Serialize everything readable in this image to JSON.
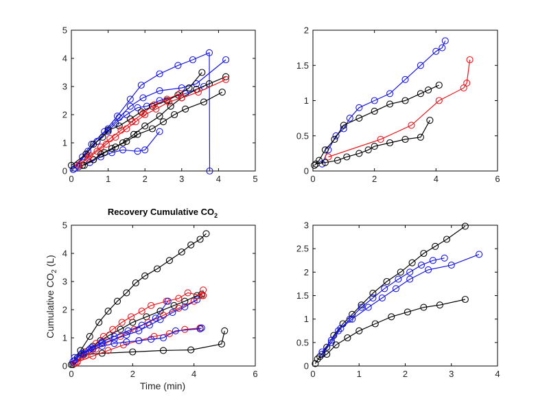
{
  "figure": {
    "title": "Recovery Cumulative CO",
    "title_sub": "2",
    "xlabel": "Time (min)",
    "ylabel_main": "Cumulative CO",
    "ylabel_sub": "2",
    "ylabel_unit": " (L)"
  },
  "colors": {
    "black": "#000000",
    "red": "#e8141a",
    "blue": "#1414e0"
  },
  "chart_data": [
    {
      "type": "line",
      "position": "top-left",
      "title": "",
      "xlabel": "",
      "ylabel": "",
      "xlim": [
        0,
        5
      ],
      "ylim": [
        0,
        5
      ],
      "xticks": [
        0,
        1,
        2,
        3,
        4,
        5
      ],
      "yticks": [
        0,
        1,
        2,
        3,
        4,
        5
      ],
      "grid": false,
      "series": [
        {
          "color": "blue",
          "x": [
            0.05,
            0.3,
            0.55,
            0.9,
            1.25,
            1.6,
            1.9,
            2.4,
            2.9,
            3.3,
            3.75,
            3.76
          ],
          "y": [
            0.05,
            0.5,
            0.95,
            1.4,
            1.95,
            2.55,
            3.05,
            3.45,
            3.75,
            3.95,
            4.2,
            0.0
          ]
        },
        {
          "color": "blue",
          "x": [
            0.1,
            0.4,
            0.7,
            1.0,
            1.3,
            1.6,
            1.95,
            2.4,
            3.0,
            3.4,
            4.2
          ],
          "y": [
            0.1,
            0.6,
            1.05,
            1.5,
            1.9,
            2.3,
            2.6,
            2.85,
            2.95,
            3.1,
            3.95
          ]
        },
        {
          "color": "blue",
          "x": [
            0.15,
            0.45,
            0.7,
            1.0,
            1.2,
            1.5,
            1.8,
            2.05,
            2.4,
            3.1,
            3.6
          ],
          "y": [
            0.2,
            0.7,
            1.05,
            1.4,
            1.7,
            2.0,
            2.25,
            2.3,
            2.5,
            2.75,
            3.0
          ]
        },
        {
          "color": "blue",
          "x": [
            0.2,
            0.5,
            0.8,
            1.1,
            1.4,
            1.8,
            2.0,
            2.4
          ],
          "y": [
            0.15,
            0.3,
            0.5,
            0.65,
            0.75,
            0.7,
            0.75,
            1.4
          ]
        },
        {
          "color": "black",
          "x": [
            0.0,
            0.4,
            0.6,
            0.85,
            1.0,
            1.3,
            1.6,
            1.9,
            2.2,
            2.6,
            2.9,
            3.2,
            3.55
          ],
          "y": [
            0.2,
            0.6,
            0.95,
            1.2,
            1.45,
            1.6,
            1.85,
            2.1,
            2.3,
            2.5,
            2.7,
            2.95,
            3.5
          ]
        },
        {
          "color": "black",
          "x": [
            0.3,
            0.6,
            0.8,
            1.1,
            1.4,
            1.7,
            2.0,
            2.4,
            2.7,
            3.0,
            3.4,
            3.75,
            4.2
          ],
          "y": [
            0.2,
            0.4,
            0.6,
            0.8,
            1.0,
            1.3,
            1.6,
            1.95,
            2.3,
            2.6,
            2.9,
            3.1,
            3.35
          ]
        },
        {
          "color": "black",
          "x": [
            0.35,
            0.6,
            0.9,
            1.2,
            1.5,
            1.8,
            2.2,
            2.5,
            2.8,
            3.1,
            3.6,
            4.1
          ],
          "y": [
            0.2,
            0.4,
            0.65,
            0.85,
            1.05,
            1.3,
            1.5,
            1.75,
            2.0,
            2.2,
            2.45,
            2.8
          ]
        },
        {
          "color": "red",
          "x": [
            0.2,
            0.45,
            0.7,
            0.95,
            1.2,
            1.5,
            1.75,
            2.0,
            2.3,
            2.65,
            3.0,
            3.45,
            4.2
          ],
          "y": [
            0.2,
            0.45,
            0.7,
            0.95,
            1.2,
            1.5,
            1.75,
            2.0,
            2.2,
            2.45,
            2.6,
            2.8,
            3.25
          ]
        },
        {
          "color": "red",
          "x": [
            0.25,
            0.5,
            0.8,
            1.05,
            1.35,
            1.65,
            1.95,
            2.25,
            2.6,
            2.95
          ],
          "y": [
            0.25,
            0.55,
            0.85,
            1.15,
            1.45,
            1.75,
            2.05,
            2.35,
            2.55,
            2.75
          ]
        }
      ]
    },
    {
      "type": "line",
      "position": "top-right",
      "title": "",
      "xlabel": "",
      "ylabel": "",
      "xlim": [
        0,
        6
      ],
      "ylim": [
        0,
        2
      ],
      "xticks": [
        0,
        2,
        4,
        6
      ],
      "yticks": [
        0,
        0.5,
        1,
        1.5,
        2
      ],
      "grid": false,
      "series": [
        {
          "color": "blue",
          "x": [
            0.3,
            0.5,
            0.75,
            1.0,
            1.2,
            1.5,
            2.0,
            2.5,
            3.0,
            3.5,
            4.0,
            4.2,
            4.3
          ],
          "y": [
            0.1,
            0.3,
            0.5,
            0.6,
            0.75,
            0.9,
            1.0,
            1.1,
            1.3,
            1.5,
            1.7,
            1.75,
            1.85
          ]
        },
        {
          "color": "black",
          "x": [
            0.05,
            0.2,
            0.4,
            0.7,
            1.0,
            1.5,
            2.0,
            2.5,
            3.0,
            3.5,
            3.75,
            4.1
          ],
          "y": [
            0.08,
            0.15,
            0.3,
            0.45,
            0.65,
            0.75,
            0.85,
            0.95,
            1.0,
            1.1,
            1.15,
            1.22
          ]
        },
        {
          "color": "red",
          "x": [
            0.5,
            2.2,
            3.2,
            4.1,
            4.9,
            5.0,
            5.1
          ],
          "y": [
            0.2,
            0.45,
            0.65,
            1.0,
            1.18,
            1.25,
            1.58
          ]
        },
        {
          "color": "black",
          "x": [
            0.1,
            0.4,
            0.8,
            1.1,
            1.5,
            1.8,
            2.0,
            2.5,
            3.0,
            3.5,
            3.8
          ],
          "y": [
            0.1,
            0.12,
            0.15,
            0.2,
            0.25,
            0.3,
            0.35,
            0.4,
            0.45,
            0.48,
            0.72
          ]
        }
      ]
    },
    {
      "type": "line",
      "position": "bottom-left",
      "title": "Recovery Cumulative CO2",
      "xlabel": "Time (min)",
      "ylabel": "Cumulative CO2 (L)",
      "xlim": [
        0,
        6
      ],
      "ylim": [
        0,
        5
      ],
      "xticks": [
        0,
        2,
        4,
        6
      ],
      "yticks": [
        0,
        1,
        2,
        3,
        4,
        5
      ],
      "grid": false,
      "series": [
        {
          "color": "black",
          "x": [
            0.0,
            0.3,
            0.6,
            0.9,
            1.2,
            1.5,
            1.8,
            2.1,
            2.4,
            2.8,
            3.2,
            3.6,
            3.9,
            4.2,
            4.4
          ],
          "y": [
            0.05,
            0.55,
            1.05,
            1.55,
            1.95,
            2.3,
            2.6,
            2.95,
            3.2,
            3.45,
            3.75,
            4.05,
            4.3,
            4.5,
            4.7
          ]
        },
        {
          "color": "black",
          "x": [
            0.2,
            0.45,
            0.7,
            0.95,
            1.25,
            1.6,
            2.0,
            2.45,
            2.9,
            3.35,
            3.7,
            4.1,
            4.25
          ],
          "y": [
            0.3,
            0.5,
            0.7,
            0.9,
            1.1,
            1.3,
            1.55,
            1.75,
            1.95,
            2.15,
            2.3,
            2.5,
            2.55
          ]
        },
        {
          "color": "black",
          "x": [
            0.05,
            0.4,
            1.0,
            2.0,
            3.0,
            3.9,
            4.9,
            5.0
          ],
          "y": [
            0.05,
            0.4,
            0.45,
            0.5,
            0.55,
            0.57,
            0.78,
            1.25
          ]
        },
        {
          "color": "red",
          "x": [
            0.1,
            0.3,
            0.55,
            0.8,
            1.05,
            1.35,
            1.65,
            1.95,
            2.3,
            2.6,
            3.1,
            3.5,
            3.8,
            4.25,
            4.3
          ],
          "y": [
            0.1,
            0.3,
            0.55,
            0.8,
            1.05,
            1.3,
            1.55,
            1.75,
            1.95,
            2.15,
            2.3,
            2.4,
            2.6,
            2.5,
            2.7
          ]
        },
        {
          "color": "red",
          "x": [
            0.15,
            0.45,
            0.8,
            1.2,
            1.6,
            2.05,
            2.5,
            3.0,
            3.5,
            4.0,
            4.3
          ],
          "y": [
            0.1,
            0.35,
            0.6,
            0.85,
            1.05,
            1.3,
            1.55,
            1.8,
            2.05,
            2.3,
            2.5
          ]
        },
        {
          "color": "red",
          "x": [
            0.2,
            0.7,
            1.2,
            1.7,
            2.2,
            2.7,
            3.2,
            3.7,
            4.2
          ],
          "y": [
            0.15,
            0.35,
            0.55,
            0.75,
            0.9,
            1.05,
            1.15,
            1.3,
            1.35
          ]
        },
        {
          "color": "blue",
          "x": [
            0.05,
            0.3,
            0.6,
            1.0,
            1.4,
            1.8,
            2.2,
            2.55,
            2.9,
            3.3,
            3.7,
            4.1
          ],
          "y": [
            0.15,
            0.4,
            0.6,
            0.8,
            0.95,
            1.1,
            1.25,
            1.45,
            1.65,
            1.9,
            2.1,
            2.35
          ]
        },
        {
          "color": "blue",
          "x": [
            0.1,
            0.35,
            0.65,
            1.0,
            1.4,
            1.85,
            2.3,
            2.75,
            3.15
          ],
          "y": [
            0.2,
            0.45,
            0.65,
            0.85,
            1.05,
            1.25,
            1.45,
            1.7,
            2.3
          ]
        },
        {
          "color": "blue",
          "x": [
            0.1,
            0.4,
            0.7,
            1.0,
            1.4,
            1.8,
            2.2,
            2.6,
            3.0,
            3.4,
            4.2,
            4.25
          ],
          "y": [
            0.3,
            0.45,
            0.6,
            0.7,
            0.8,
            0.85,
            0.9,
            0.95,
            1.0,
            1.25,
            1.32,
            1.35
          ]
        }
      ]
    },
    {
      "type": "line",
      "position": "bottom-right",
      "title": "",
      "xlabel": "",
      "ylabel": "",
      "xlim": [
        0,
        4
      ],
      "ylim": [
        0,
        3
      ],
      "xticks": [
        0,
        1,
        2,
        3,
        4
      ],
      "yticks": [
        0,
        0.5,
        1,
        1.5,
        2,
        2.5,
        3
      ],
      "grid": false,
      "series": [
        {
          "color": "black",
          "x": [
            0.05,
            0.15,
            0.3,
            0.45,
            0.65,
            0.85,
            1.05,
            1.3,
            1.6,
            1.9,
            2.15,
            2.4,
            2.65,
            2.9,
            3.3
          ],
          "y": [
            0.05,
            0.2,
            0.4,
            0.65,
            0.9,
            1.1,
            1.3,
            1.55,
            1.8,
            2.0,
            2.2,
            2.4,
            2.55,
            2.7,
            2.98
          ]
        },
        {
          "color": "blue",
          "x": [
            0.2,
            0.4,
            0.55,
            0.8,
            1.05,
            1.3,
            1.55,
            1.85,
            2.1,
            2.35,
            2.6,
            2.85
          ],
          "y": [
            0.3,
            0.55,
            0.75,
            1.0,
            1.25,
            1.45,
            1.65,
            1.85,
            2.0,
            2.15,
            2.25,
            2.3
          ]
        },
        {
          "color": "blue",
          "x": [
            0.2,
            0.4,
            0.6,
            0.85,
            1.2,
            1.5,
            1.8,
            2.1,
            2.5,
            3.0,
            3.6
          ],
          "y": [
            0.25,
            0.5,
            0.8,
            1.0,
            1.25,
            1.45,
            1.65,
            1.85,
            2.05,
            2.15,
            2.38
          ]
        },
        {
          "color": "black",
          "x": [
            0.1,
            0.3,
            0.5,
            0.75,
            1.0,
            1.35,
            1.7,
            2.05,
            2.4,
            2.75,
            3.3
          ],
          "y": [
            0.15,
            0.25,
            0.45,
            0.6,
            0.75,
            0.9,
            1.05,
            1.15,
            1.25,
            1.3,
            1.42
          ]
        }
      ]
    }
  ]
}
